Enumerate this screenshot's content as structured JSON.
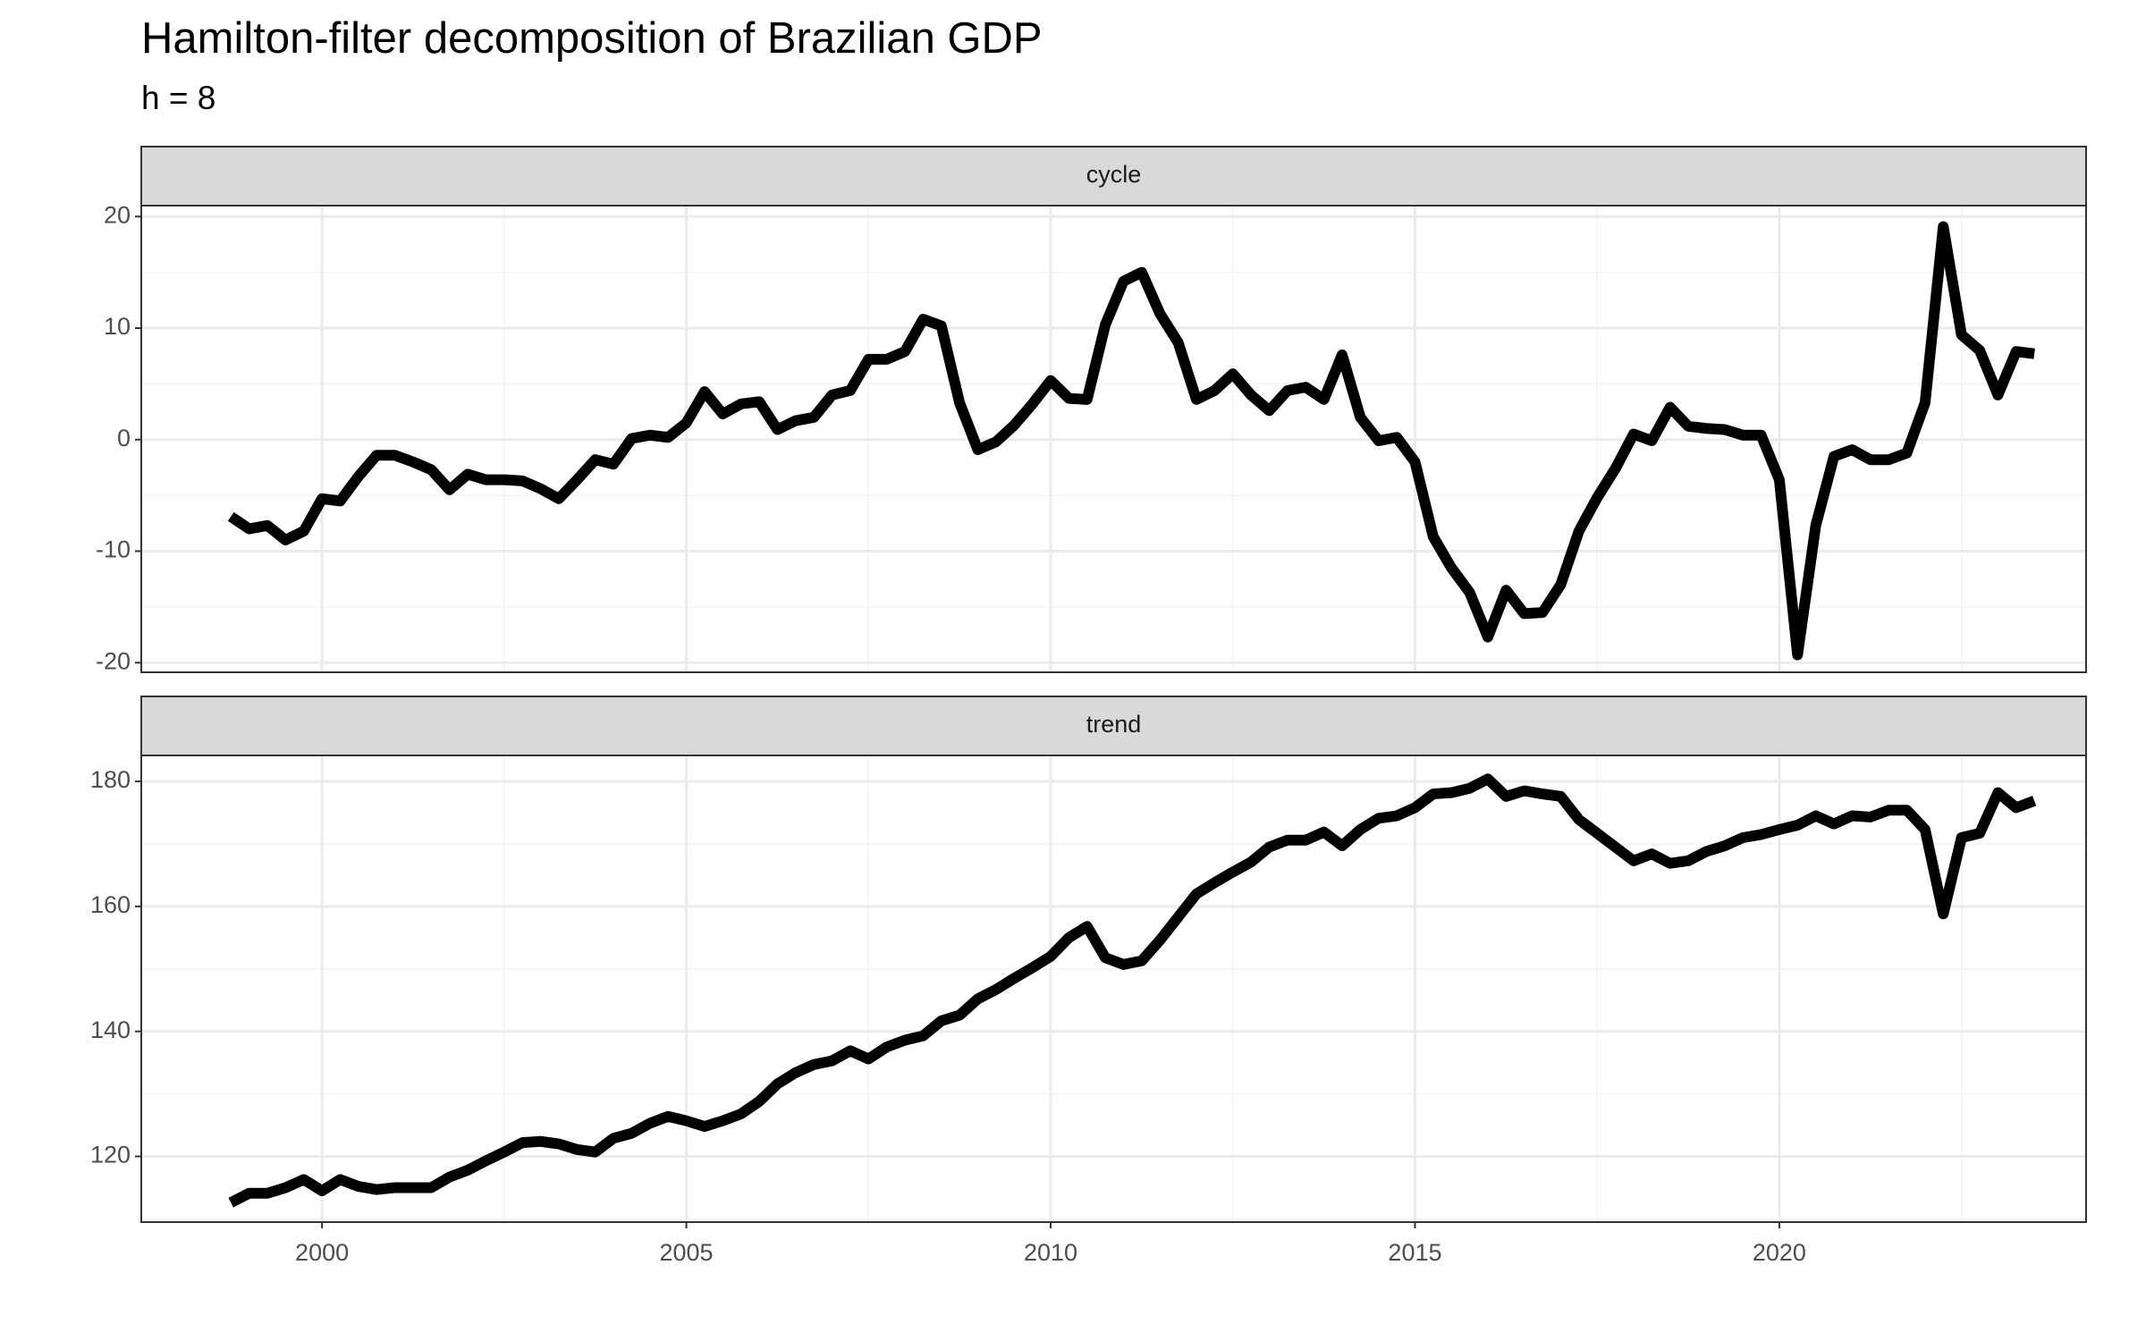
{
  "chart_data": {
    "type": "line",
    "title": "Hamilton-filter decomposition of Brazilian GDP",
    "subtitle": "h = 8",
    "color": "#000000",
    "grid": true,
    "x": [
      1998.75,
      1999,
      1999.25,
      1999.5,
      1999.75,
      2000,
      2000.25,
      2000.5,
      2000.75,
      2001,
      2001.25,
      2001.5,
      2001.75,
      2002,
      2002.25,
      2002.5,
      2002.75,
      2003,
      2003.25,
      2003.5,
      2003.75,
      2004,
      2004.25,
      2004.5,
      2004.75,
      2005,
      2005.25,
      2005.5,
      2005.75,
      2006,
      2006.25,
      2006.5,
      2006.75,
      2007,
      2007.25,
      2007.5,
      2007.75,
      2008,
      2008.25,
      2008.5,
      2008.75,
      2009,
      2009.25,
      2009.5,
      2009.75,
      2010,
      2010.25,
      2010.5,
      2010.75,
      2011,
      2011.25,
      2011.5,
      2011.75,
      2012,
      2012.25,
      2012.5,
      2012.75,
      2013,
      2013.25,
      2013.5,
      2013.75,
      2014,
      2014.25,
      2014.5,
      2014.75,
      2015,
      2015.25,
      2015.5,
      2015.75,
      2016,
      2016.25,
      2016.5,
      2016.75,
      2017,
      2017.25,
      2017.5,
      2017.75,
      2018,
      2018.25,
      2018.5,
      2018.75,
      2019,
      2019.25,
      2019.5,
      2019.75,
      2020,
      2020.25,
      2020.5,
      2020.75,
      2021,
      2021.25,
      2021.5,
      2021.75,
      2022,
      2022.25,
      2022.5,
      2022.75,
      2023,
      2023.25,
      2023.5
    ],
    "xlim": [
      1997.52,
      2024.21
    ],
    "xticks": [
      2000,
      2005,
      2010,
      2015,
      2020
    ],
    "panels": [
      {
        "name": "cycle",
        "values": [
          -6.9,
          -8.0,
          -7.7,
          -9.0,
          -8.2,
          -5.3,
          -5.5,
          -3.3,
          -1.4,
          -1.4,
          -2.0,
          -2.7,
          -4.5,
          -3.1,
          -3.6,
          -3.6,
          -3.7,
          -4.4,
          -5.3,
          -3.6,
          -1.8,
          -2.2,
          0.1,
          0.4,
          0.2,
          1.5,
          4.3,
          2.3,
          3.2,
          3.4,
          0.9,
          1.7,
          2.0,
          4.0,
          4.4,
          7.2,
          7.2,
          7.9,
          10.8,
          10.2,
          3.3,
          -0.9,
          -0.2,
          1.3,
          3.2,
          5.3,
          3.7,
          3.6,
          10.3,
          14.2,
          15.0,
          11.3,
          8.7,
          3.6,
          4.4,
          5.9,
          4.0,
          2.6,
          4.4,
          4.7,
          3.6,
          7.6,
          2.0,
          -0.1,
          0.2,
          -2.0,
          -8.7,
          -11.5,
          -13.7,
          -17.7,
          -13.5,
          -15.6,
          -15.5,
          -13.0,
          -8.2,
          -5.2,
          -2.6,
          0.5,
          -0.1,
          2.9,
          1.2,
          1.0,
          0.9,
          0.4,
          0.4,
          -3.6,
          -19.3,
          -7.7,
          -1.5,
          -0.9,
          -1.8,
          -1.8,
          -1.2,
          3.3,
          19.1,
          9.4,
          8.0,
          4.0,
          7.9,
          7.7
        ],
        "ylim": [
          -20.86,
          20.98
        ],
        "yticks": [
          -20,
          -10,
          0,
          10,
          20
        ]
      },
      {
        "name": "trend",
        "values": [
          112.6,
          114.1,
          114.1,
          115.0,
          116.3,
          114.5,
          116.3,
          115.2,
          114.7,
          115.0,
          115.0,
          115.0,
          116.7,
          117.8,
          119.3,
          120.7,
          122.2,
          122.4,
          122.0,
          121.1,
          120.7,
          122.9,
          123.7,
          125.3,
          126.4,
          125.7,
          124.8,
          125.7,
          126.8,
          128.8,
          131.6,
          133.4,
          134.7,
          135.3,
          136.9,
          135.6,
          137.5,
          138.6,
          139.3,
          141.7,
          142.6,
          145.2,
          146.7,
          148.5,
          150.2,
          152.0,
          155.0,
          156.8,
          151.8,
          150.7,
          151.3,
          154.6,
          158.3,
          162.0,
          163.8,
          165.5,
          167.1,
          169.5,
          170.6,
          170.6,
          171.9,
          169.7,
          172.3,
          174.1,
          174.5,
          175.8,
          178.0,
          178.2,
          178.9,
          180.4,
          177.6,
          178.5,
          178.0,
          177.6,
          173.9,
          171.7,
          169.5,
          167.3,
          168.4,
          166.9,
          167.3,
          168.8,
          169.7,
          171.0,
          171.5,
          172.3,
          173.0,
          174.5,
          173.2,
          174.5,
          174.3,
          175.4,
          175.4,
          172.3,
          158.8,
          171.0,
          171.7,
          178.2,
          175.8,
          176.9
        ],
        "ylim": [
          109.49,
          184.16
        ],
        "yticks": [
          120,
          140,
          160,
          180
        ]
      }
    ]
  }
}
